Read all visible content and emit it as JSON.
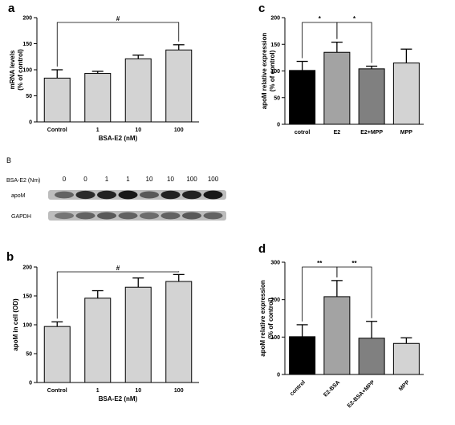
{
  "panels": {
    "a": "a",
    "b": "b",
    "c": "c",
    "d": "d",
    "blot": "B"
  },
  "chart_data": [
    {
      "id": "a",
      "type": "bar",
      "categories": [
        "Control",
        "1",
        "10",
        "100"
      ],
      "values": [
        84,
        93,
        121,
        138
      ],
      "errors": [
        16,
        4,
        7,
        10
      ],
      "colors": [
        "#d3d3d3",
        "#d3d3d3",
        "#d3d3d3",
        "#d3d3d3"
      ],
      "ylabel": [
        "mRNA levels",
        "(% of control)"
      ],
      "xlabel": "BSA-E2 (nM)",
      "ylim": [
        0,
        200
      ],
      "yticks": [
        0,
        50,
        100,
        150,
        200
      ],
      "significance": [
        {
          "from": 0,
          "to": 3,
          "label": "#"
        }
      ]
    },
    {
      "id": "b",
      "type": "bar",
      "categories": [
        "Control",
        "1",
        "10",
        "100"
      ],
      "values": [
        97,
        146,
        165,
        175
      ],
      "errors": [
        8,
        13,
        16,
        12
      ],
      "colors": [
        "#d3d3d3",
        "#d3d3d3",
        "#d3d3d3",
        "#d3d3d3"
      ],
      "ylabel": [
        "apoM in cell (OD)"
      ],
      "xlabel": "BSA-E2 (nM)",
      "ylim": [
        0,
        200
      ],
      "yticks": [
        0,
        50,
        100,
        150,
        200
      ],
      "significance": [
        {
          "from": 0,
          "to": 3,
          "label": "#"
        }
      ]
    },
    {
      "id": "c",
      "type": "bar",
      "categories": [
        "cotrol",
        "E2",
        "E2+MPP",
        "MPP"
      ],
      "values": [
        101,
        135,
        104,
        115
      ],
      "errors": [
        17,
        19,
        5,
        26
      ],
      "colors": [
        "#000000",
        "#a3a3a3",
        "#808080",
        "#d3d3d3"
      ],
      "ylabel": [
        "apoM relative expression",
        "(% of control)"
      ],
      "xlabel": "",
      "ylim": [
        0,
        200
      ],
      "yticks": [
        0,
        50,
        100,
        150,
        200
      ],
      "significance": [
        {
          "from": 0,
          "to": 1,
          "label": "*"
        },
        {
          "from": 1,
          "to": 2,
          "label": "*"
        }
      ]
    },
    {
      "id": "d",
      "type": "bar",
      "categories": [
        "control",
        "E2-BSA",
        "E2-BSA+MPP",
        "MPP"
      ],
      "values": [
        101,
        208,
        97,
        83
      ],
      "errors": [
        32,
        43,
        45,
        15
      ],
      "colors": [
        "#000000",
        "#a3a3a3",
        "#808080",
        "#d3d3d3"
      ],
      "ylabel": [
        "apoM relative expression",
        "(% of control)"
      ],
      "xlabel": "",
      "ylim": [
        0,
        300
      ],
      "yticks": [
        0,
        100,
        200,
        300
      ],
      "significance": [
        {
          "from": 0,
          "to": 1,
          "label": "**"
        },
        {
          "from": 1,
          "to": 2,
          "label": "**"
        }
      ]
    }
  ],
  "blot": {
    "header_label": "BSA-E2 (Nm)",
    "lanes": [
      "0",
      "0",
      "1",
      "1",
      "10",
      "10",
      "100",
      "100"
    ],
    "rows": [
      {
        "label": "apoM",
        "intensity": [
          0.55,
          0.85,
          0.9,
          0.95,
          0.6,
          0.9,
          0.9,
          0.95
        ]
      },
      {
        "label": "GAPDH",
        "intensity": [
          0.45,
          0.55,
          0.6,
          0.55,
          0.5,
          0.55,
          0.6,
          0.55
        ]
      }
    ]
  }
}
